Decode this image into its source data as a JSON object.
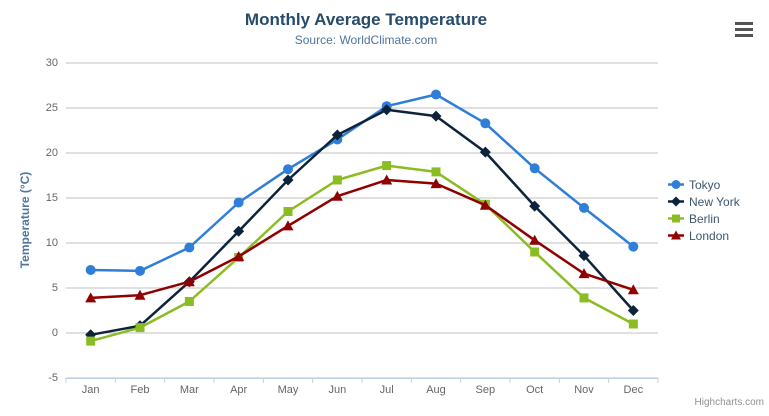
{
  "chart_data": {
    "type": "line",
    "title": "Monthly Average Temperature",
    "subtitle": "Source: WorldClimate.com",
    "categories": [
      "Jan",
      "Feb",
      "Mar",
      "Apr",
      "May",
      "Jun",
      "Jul",
      "Aug",
      "Sep",
      "Oct",
      "Nov",
      "Dec"
    ],
    "series": [
      {
        "name": "Tokyo",
        "color": "#2f7ed8",
        "marker": "circle",
        "values": [
          7.0,
          6.9,
          9.5,
          14.5,
          18.2,
          21.5,
          25.2,
          26.5,
          23.3,
          18.3,
          13.9,
          9.6
        ]
      },
      {
        "name": "New York",
        "color": "#0d233a",
        "marker": "diamond",
        "values": [
          -0.2,
          0.8,
          5.7,
          11.3,
          17.0,
          22.0,
          24.8,
          24.1,
          20.1,
          14.1,
          8.6,
          2.5
        ]
      },
      {
        "name": "Berlin",
        "color": "#8bbc21",
        "marker": "square",
        "values": [
          -0.9,
          0.6,
          3.5,
          8.4,
          13.5,
          17.0,
          18.6,
          17.9,
          14.3,
          9.0,
          3.9,
          1.0
        ]
      },
      {
        "name": "London",
        "color": "#910000",
        "marker": "triangle",
        "values": [
          3.9,
          4.2,
          5.7,
          8.5,
          11.9,
          15.2,
          17.0,
          16.6,
          14.2,
          10.3,
          6.6,
          4.8
        ]
      }
    ],
    "xlabel": "",
    "ylabel": "Temperature (°C)",
    "ylim": [
      -5,
      30
    ],
    "yticks": [
      -5,
      0,
      5,
      10,
      15,
      20,
      25,
      30
    ],
    "grid": true,
    "legend_position": "right"
  },
  "credit_label": "Highcharts.com",
  "colors": {
    "title": "#274b6d",
    "subtitle": "#4d759e",
    "axis_title": "#4d759e",
    "tick_label": "#666666",
    "grid_line": "#c0c0c0",
    "axis_line": "#c0d0e0",
    "legend_text": "#3e576f",
    "credit": "#909090"
  }
}
